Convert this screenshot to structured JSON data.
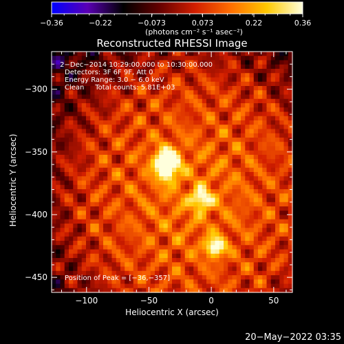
{
  "chart_data": {
    "type": "heatmap",
    "title": "Reconstructed RHESSI Image",
    "xlabel": "Heliocentric X (arcsec)",
    "ylabel": "Heliocentric Y (arcsec)",
    "xlim": [
      -128,
      65
    ],
    "ylim": [
      -462,
      -270
    ],
    "x_ticks": [
      -100,
      -50,
      0,
      50
    ],
    "y_ticks": [
      -300,
      -350,
      -400,
      -450
    ],
    "x_tick_labels": [
      "−100",
      "−50",
      "0",
      "50"
    ],
    "y_tick_labels": [
      "−300",
      "−350",
      "−400",
      "−450"
    ],
    "colorbar": {
      "range": [
        -0.36,
        0.36
      ],
      "ticks": [
        -0.36,
        -0.22,
        -0.073,
        0.073,
        0.22,
        0.36
      ],
      "tick_labels": [
        "−0.36",
        "−0.22",
        "−0.073",
        "0.073",
        "0.22",
        "0.36"
      ],
      "units_label": "(photons cm⁻² s⁻¹ asec⁻²)"
    },
    "colormap_stops": [
      "#0000ff",
      "#5a00b4",
      "#000000",
      "#640000",
      "#d21e00",
      "#ff6e00",
      "#ffc800",
      "#ffffdc"
    ],
    "sources": [
      {
        "x": -36,
        "y": -357,
        "peak": 0.36
      },
      {
        "x": -8,
        "y": -388,
        "peak": 0.3
      },
      {
        "x": 3,
        "y": -426,
        "peak": 0.31
      }
    ],
    "annotations": [
      " 2−Dec−2014 10:29:00.000 to 10:30:00.000",
      "Detectors: 3F 6F 9F, Att 0",
      "Energy Range: 3.0 − 6.0 keV",
      "Clean     Total counts: 5.81E+03"
    ],
    "peak_label": "Position of Peak = [−36,−357]",
    "grid": false
  },
  "timestamp": "20−May−2022 03:35"
}
